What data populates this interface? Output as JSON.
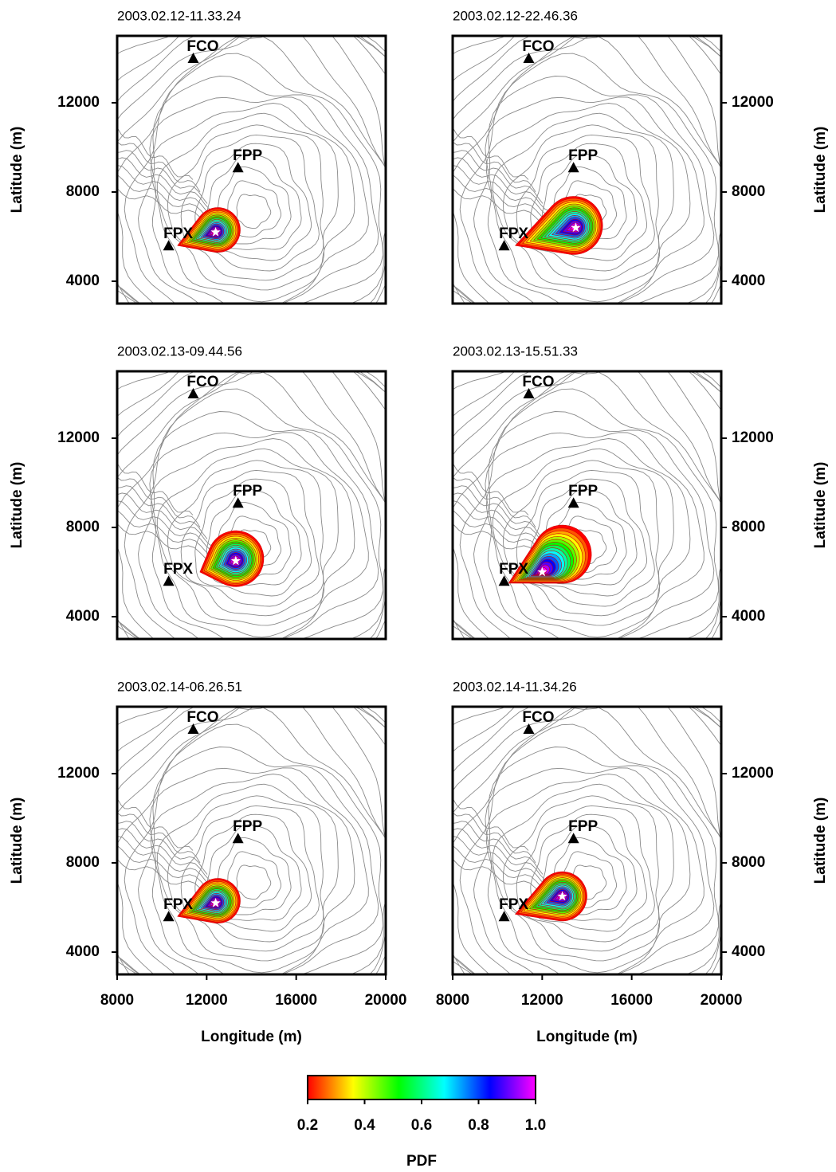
{
  "chart_data": [
    {
      "type": "map",
      "title": "2003.02.12-11.33.24",
      "xlim": [
        8000,
        20000
      ],
      "ylim": [
        3000,
        15000
      ],
      "yticks": [
        4000,
        8000,
        12000
      ],
      "ylabel": "Latitude (m)",
      "y_axis_side": "left",
      "stations": [
        {
          "name": "FCO",
          "x": 11400,
          "y": 14000
        },
        {
          "name": "FPP",
          "x": 13400,
          "y": 9100
        },
        {
          "name": "FPX",
          "x": 10300,
          "y": 5600
        }
      ],
      "best": [
        12400,
        6200
      ],
      "pdf": {
        "center": [
          12500,
          6300
        ],
        "radius": 1000,
        "tail": [
          10700,
          5600
        ]
      }
    },
    {
      "type": "map",
      "title": "2003.02.12-22.46.36",
      "xlim": [
        8000,
        20000
      ],
      "ylim": [
        3000,
        15000
      ],
      "yticks": [
        4000,
        8000,
        12000
      ],
      "ylabel": "Latitude (m)",
      "y_axis_side": "right",
      "stations": [
        {
          "name": "FCO",
          "x": 11400,
          "y": 14000
        },
        {
          "name": "FPP",
          "x": 13400,
          "y": 9100
        },
        {
          "name": "FPX",
          "x": 10300,
          "y": 5600
        }
      ],
      "best": [
        13500,
        6400
      ],
      "pdf": {
        "center": [
          13400,
          6500
        ],
        "radius": 1300,
        "tail": [
          10800,
          5600
        ]
      }
    },
    {
      "type": "map",
      "title": "2003.02.13-09.44.56",
      "xlim": [
        8000,
        20000
      ],
      "ylim": [
        3000,
        15000
      ],
      "yticks": [
        4000,
        8000,
        12000
      ],
      "ylabel": "Latitude (m)",
      "y_axis_side": "left",
      "stations": [
        {
          "name": "FCO",
          "x": 11400,
          "y": 14000
        },
        {
          "name": "FPP",
          "x": 13400,
          "y": 9100
        },
        {
          "name": "FPX",
          "x": 10300,
          "y": 5600
        }
      ],
      "best": [
        13300,
        6500
      ],
      "pdf": {
        "center": [
          13300,
          6600
        ],
        "radius": 1250,
        "tail": [
          11700,
          6000
        ]
      }
    },
    {
      "type": "map",
      "title": "2003.02.13-15.51.33",
      "xlim": [
        8000,
        20000
      ],
      "ylim": [
        3000,
        15000
      ],
      "yticks": [
        4000,
        8000,
        12000
      ],
      "ylabel": "Latitude (m)",
      "y_axis_side": "right",
      "stations": [
        {
          "name": "FCO",
          "x": 11400,
          "y": 14000
        },
        {
          "name": "FPP",
          "x": 13400,
          "y": 9100
        },
        {
          "name": "FPX",
          "x": 10300,
          "y": 5600
        }
      ],
      "best": [
        12000,
        6000
      ],
      "pdf": {
        "center": [
          12900,
          6800
        ],
        "radius": 1300,
        "tail": [
          10500,
          5500
        ]
      }
    },
    {
      "type": "map",
      "title": "2003.02.14-06.26.51",
      "xlim": [
        8000,
        20000
      ],
      "ylim": [
        3000,
        15000
      ],
      "xticks": [
        8000,
        12000,
        16000,
        20000
      ],
      "yticks": [
        4000,
        8000,
        12000
      ],
      "xlabel": "Longitude (m)",
      "ylabel": "Latitude (m)",
      "y_axis_side": "left",
      "stations": [
        {
          "name": "FCO",
          "x": 11400,
          "y": 14000
        },
        {
          "name": "FPP",
          "x": 13400,
          "y": 9100
        },
        {
          "name": "FPX",
          "x": 10300,
          "y": 5600
        }
      ],
      "best": [
        12400,
        6200
      ],
      "pdf": {
        "center": [
          12500,
          6300
        ],
        "radius": 1000,
        "tail": [
          10700,
          5600
        ]
      }
    },
    {
      "type": "map",
      "title": "2003.02.14-11.34.26",
      "xlim": [
        8000,
        20000
      ],
      "ylim": [
        3000,
        15000
      ],
      "xticks": [
        8000,
        12000,
        16000,
        20000
      ],
      "yticks": [
        4000,
        8000,
        12000
      ],
      "xlabel": "Longitude (m)",
      "ylabel": "Latitude (m)",
      "y_axis_side": "right",
      "stations": [
        {
          "name": "FCO",
          "x": 11400,
          "y": 14000
        },
        {
          "name": "FPP",
          "x": 13400,
          "y": 9100
        },
        {
          "name": "FPX",
          "x": 10300,
          "y": 5600
        }
      ],
      "best": [
        12900,
        6500
      ],
      "pdf": {
        "center": [
          12900,
          6500
        ],
        "radius": 1100,
        "tail": [
          10800,
          5700
        ]
      }
    },
    {
      "type": "colorbar",
      "label": "PDF",
      "clim": [
        0.2,
        1
      ],
      "ticks": [
        0.2,
        0.4,
        0.6,
        0.8,
        {
          "value": 1,
          "label": "1.0"
        }
      ],
      "colors": [
        "#ff0000",
        "#ffff00",
        "#00ff00",
        "#00ffff",
        "#0000ff",
        "#ff00ff"
      ]
    }
  ]
}
